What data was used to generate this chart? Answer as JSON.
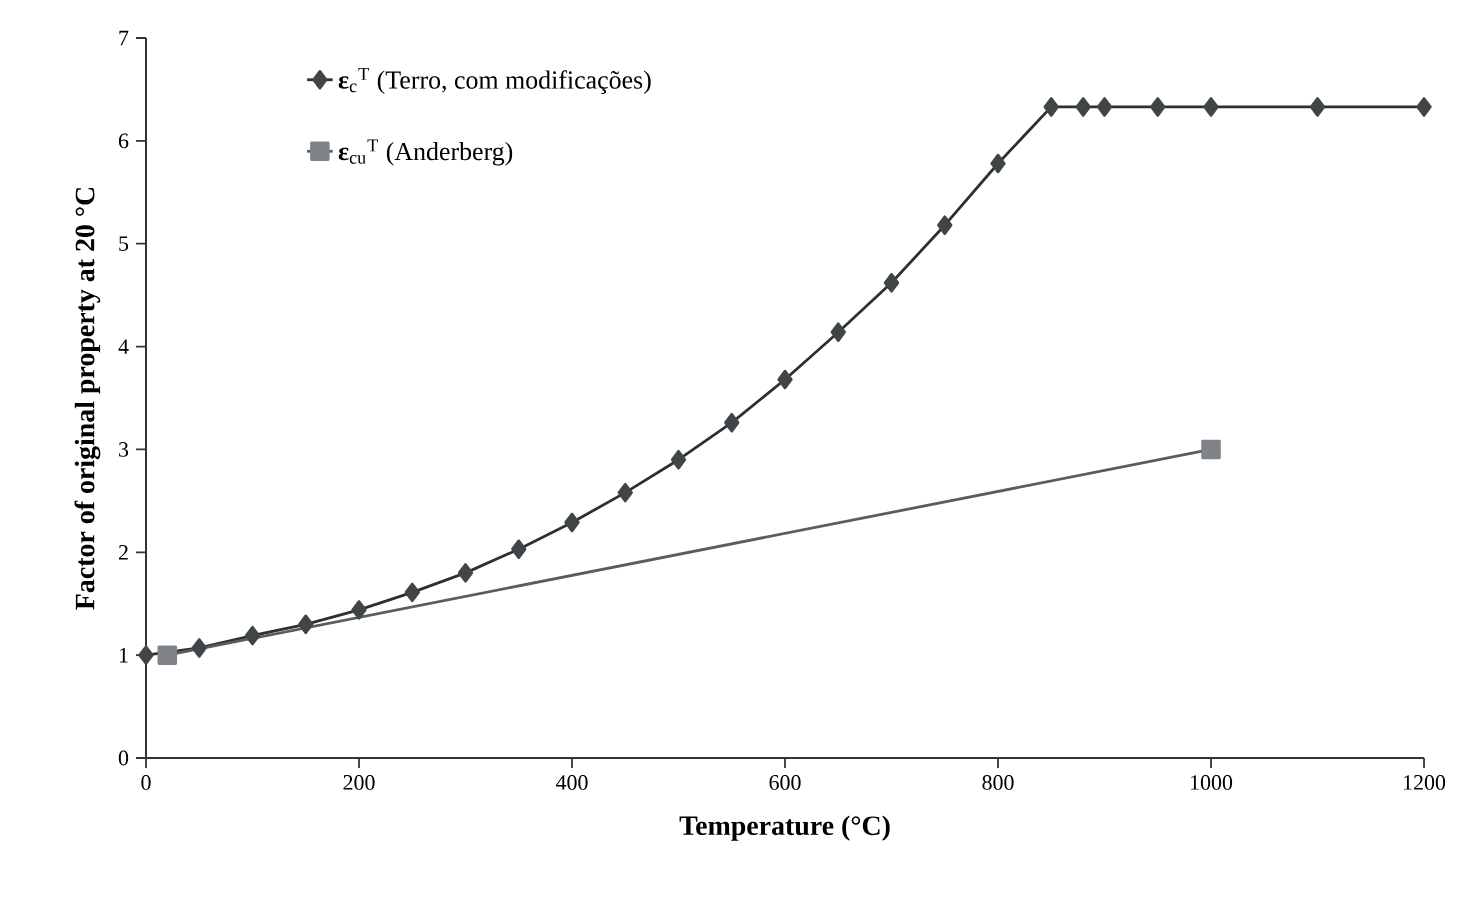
{
  "chart_data": {
    "type": "line",
    "xlabel": "Temperature (°C)",
    "ylabel": "Factor of original property at 20 °C",
    "xlim": [
      0,
      1200
    ],
    "ylim": [
      0,
      7
    ],
    "xticks": [
      0,
      200,
      400,
      600,
      800,
      1000,
      1200
    ],
    "yticks": [
      0,
      1,
      2,
      3,
      4,
      5,
      6,
      7
    ],
    "grid": false,
    "legend": "top left",
    "line_style": "solid",
    "series": [
      {
        "name": "**ε**$_{c}$$^{T}$ (Terro, com modificações)",
        "color": "#404548",
        "marker": "diamond",
        "x": [
          0,
          50,
          100,
          150,
          200,
          250,
          300,
          350,
          400,
          450,
          500,
          550,
          600,
          650,
          700,
          750,
          800,
          850,
          880,
          900,
          950,
          1000,
          1100,
          1200
        ],
        "values": [
          1.0,
          1.07,
          1.19,
          1.3,
          1.44,
          1.61,
          1.8,
          2.03,
          2.29,
          2.58,
          2.9,
          3.26,
          3.68,
          4.14,
          4.62,
          5.18,
          5.78,
          6.33,
          6.33,
          6.33,
          6.33,
          6.33,
          6.33,
          6.33
        ]
      },
      {
        "name": "**ε**$_{cu}$$^{T}$ (Anderberg)",
        "color": "#808488",
        "marker": "square",
        "x": [
          20,
          1000
        ],
        "values": [
          1.0,
          3.0
        ]
      }
    ]
  }
}
